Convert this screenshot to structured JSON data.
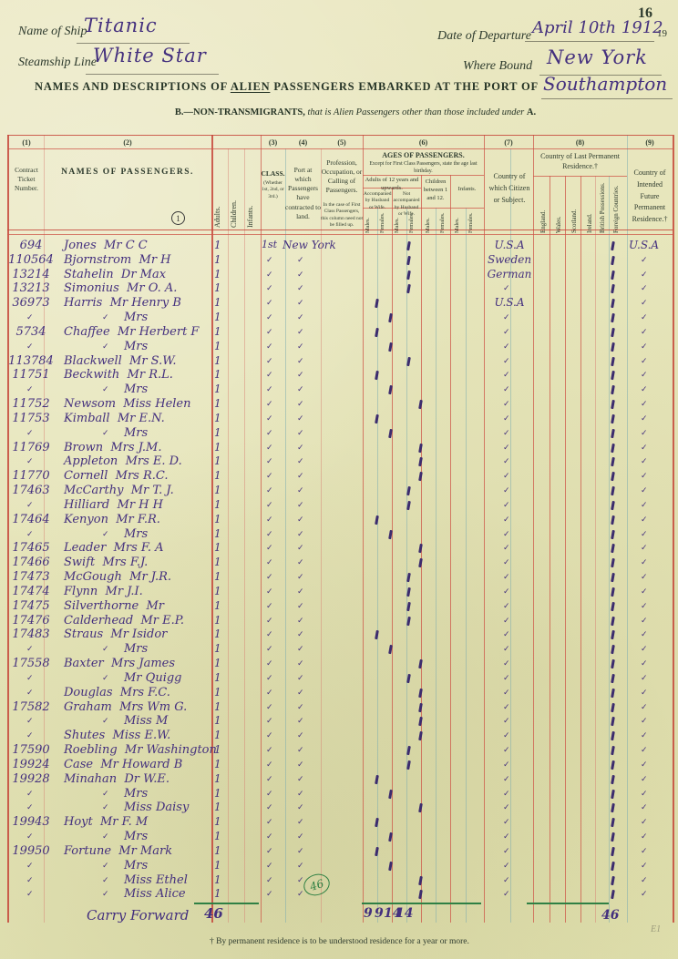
{
  "page": {
    "number": "16",
    "footnote": "† By permanent residence is to be understood residence for a year or more.",
    "pencil_mark": "E1"
  },
  "header": {
    "name_of_ship_label": "Name of Ship",
    "name_of_ship_value": "Titanic",
    "steamship_line_label": "Steamship Line",
    "steamship_line_value": "White Star",
    "date_of_departure_label": "Date of Departure",
    "date_of_departure_value": "April 10th 1912",
    "printed_year": "19",
    "where_bound_label": "Where Bound",
    "where_bound_value": "New York",
    "title_prefix": "NAMES AND DESCRIPTIONS OF",
    "title_alien": "ALIEN",
    "title_suffix": "PASSENGERS EMBARKED AT THE PORT OF",
    "port_of_embarkation": "Southampton",
    "section_b": "B.",
    "section_b_caps": "—NON-TRANSMIGRANTS,",
    "section_b_italic": "that is Alien Passengers other than those included under",
    "section_a": "A."
  },
  "table": {
    "columns": {
      "col1_num": "(1)",
      "col1_label": "Contract Ticket Number.",
      "col2_num": "(2)",
      "col2_label": "NAMES OF PASSENGERS.",
      "col2_stamp": "1",
      "count_cols": [
        "Adults.",
        "Children.",
        "Infants."
      ],
      "col3_num": "(3)",
      "col3_label": "CLASS.",
      "col3_sub": "(Whether 1st, 2nd, or 3rd.)",
      "col4_num": "(4)",
      "col4_label": "Port at which Passengers have contracted to land.",
      "col5_num": "(5)",
      "col5_label": "Profession, Occupation, or Calling of Passengers.",
      "col5_note": "In the case of First Class Passengers, this column need not be filled up.",
      "col6_num": "(6)",
      "col6_title": "AGES OF PASSENGERS.",
      "col6_note": "Except for First Class Passengers, state the age last birthday.",
      "adults_group": "Adults of 12 years and upwards.",
      "accompanied": "Accompanied by Husband or Wife.",
      "not_accompanied": "Not accompanied by Husband or Wife.",
      "children_group": "Children between 1 and 12.",
      "infants_group": "Infants.",
      "males": "Males.",
      "females": "Females.",
      "col7_num": "(7)",
      "col7_label": "Country of which Citizen or Subject.",
      "col8_num": "(8)",
      "col8_label": "Country of Last Permanent Residence.†",
      "col8_subs": [
        "England.",
        "Wales.",
        "Scotland.",
        "Ireland.",
        "British Possessions.",
        "Foreign Countries."
      ],
      "col9_num": "(9)",
      "col9_label": "Country of Intended Future Permanent Residence.†"
    },
    "rows": [
      {
        "ticket": "694",
        "name": "Jones  Mr C C",
        "indent": 0,
        "age": "mn",
        "cls": "1st",
        "port": "New York",
        "cit": "U.S.A",
        "fut": "U.S.A"
      },
      {
        "ticket": "110564",
        "name": "Bjornstrom  Mr H",
        "indent": 0,
        "age": "mn",
        "cls": "",
        "port": "",
        "cit": "Sweden",
        "fut": ""
      },
      {
        "ticket": "13214",
        "name": "Stahelin  Dr Max",
        "indent": 0,
        "age": "mn",
        "cls": "",
        "port": "",
        "cit": "German",
        "fut": ""
      },
      {
        "ticket": "13213",
        "name": "Simonius  Mr O. A.",
        "indent": 0,
        "age": "mn",
        "cls": "",
        "port": "",
        "cit": "",
        "fut": ""
      },
      {
        "ticket": "36973",
        "name": "Harris  Mr Henry B",
        "indent": 0,
        "age": "ma",
        "cls": "",
        "port": "",
        "cit": "U.S.A",
        "fut": ""
      },
      {
        "ticket": "",
        "name": "Mrs",
        "indent": 1,
        "age": "fa",
        "cls": "",
        "port": "",
        "cit": "",
        "fut": ""
      },
      {
        "ticket": "5734",
        "name": "Chaffee  Mr Herbert F",
        "indent": 0,
        "age": "ma",
        "cls": "",
        "port": "",
        "cit": "",
        "fut": ""
      },
      {
        "ticket": "",
        "name": "Mrs",
        "indent": 1,
        "age": "fa",
        "cls": "",
        "port": "",
        "cit": "",
        "fut": ""
      },
      {
        "ticket": "113784",
        "name": "Blackwell  Mr S.W.",
        "indent": 0,
        "age": "mn",
        "cls": "",
        "port": "",
        "cit": "",
        "fut": ""
      },
      {
        "ticket": "11751",
        "name": "Beckwith  Mr R.L.",
        "indent": 0,
        "age": "ma",
        "cls": "",
        "port": "",
        "cit": "",
        "fut": ""
      },
      {
        "ticket": "",
        "name": "Mrs",
        "indent": 1,
        "age": "fa",
        "cls": "",
        "port": "",
        "cit": "",
        "fut": ""
      },
      {
        "ticket": "11752",
        "name": "Newsom  Miss Helen",
        "indent": 0,
        "age": "fn",
        "cls": "",
        "port": "",
        "cit": "",
        "fut": ""
      },
      {
        "ticket": "11753",
        "name": "Kimball  Mr E.N.",
        "indent": 0,
        "age": "ma",
        "cls": "",
        "port": "",
        "cit": "",
        "fut": ""
      },
      {
        "ticket": "",
        "name": "Mrs",
        "indent": 1,
        "age": "fa",
        "cls": "",
        "port": "",
        "cit": "",
        "fut": ""
      },
      {
        "ticket": "11769",
        "name": "Brown  Mrs J.M.",
        "indent": 0,
        "age": "fn",
        "cls": "",
        "port": "",
        "cit": "",
        "fut": ""
      },
      {
        "ticket": "",
        "name": "Appleton  Mrs E. D.",
        "indent": 0,
        "age": "fn",
        "cls": "",
        "port": "",
        "cit": "",
        "fut": ""
      },
      {
        "ticket": "11770",
        "name": "Cornell  Mrs R.C.",
        "indent": 0,
        "age": "fn",
        "cls": "",
        "port": "",
        "cit": "",
        "fut": ""
      },
      {
        "ticket": "17463",
        "name": "McCarthy  Mr T. J.",
        "indent": 0,
        "age": "mn",
        "cls": "",
        "port": "",
        "cit": "",
        "fut": ""
      },
      {
        "ticket": "",
        "name": "Hilliard  Mr H H",
        "indent": 0,
        "age": "mn",
        "cls": "",
        "port": "",
        "cit": "",
        "fut": ""
      },
      {
        "ticket": "17464",
        "name": "Kenyon  Mr F.R.",
        "indent": 0,
        "age": "ma",
        "cls": "",
        "port": "",
        "cit": "",
        "fut": ""
      },
      {
        "ticket": "",
        "name": "Mrs",
        "indent": 1,
        "age": "fa",
        "cls": "",
        "port": "",
        "cit": "",
        "fut": ""
      },
      {
        "ticket": "17465",
        "name": "Leader  Mrs F. A",
        "indent": 0,
        "age": "fn",
        "cls": "",
        "port": "",
        "cit": "",
        "fut": ""
      },
      {
        "ticket": "17466",
        "name": "Swift  Mrs F.J.",
        "indent": 0,
        "age": "fn",
        "cls": "",
        "port": "",
        "cit": "",
        "fut": ""
      },
      {
        "ticket": "17473",
        "name": "McGough  Mr J.R.",
        "indent": 0,
        "age": "mn",
        "cls": "",
        "port": "",
        "cit": "",
        "fut": ""
      },
      {
        "ticket": "17474",
        "name": "Flynn  Mr J.I.",
        "indent": 0,
        "age": "mn",
        "cls": "",
        "port": "",
        "cit": "",
        "fut": ""
      },
      {
        "ticket": "17475",
        "name": "Silverthorne  Mr",
        "indent": 0,
        "age": "mn",
        "cls": "",
        "port": "",
        "cit": "",
        "fut": ""
      },
      {
        "ticket": "17476",
        "name": "Calderhead  Mr E.P.",
        "indent": 0,
        "age": "mn",
        "cls": "",
        "port": "",
        "cit": "",
        "fut": ""
      },
      {
        "ticket": "17483",
        "name": "Straus  Mr Isidor",
        "indent": 0,
        "age": "ma",
        "cls": "",
        "port": "",
        "cit": "",
        "fut": ""
      },
      {
        "ticket": "",
        "name": "Mrs",
        "indent": 1,
        "age": "fa",
        "cls": "",
        "port": "",
        "cit": "",
        "fut": ""
      },
      {
        "ticket": "17558",
        "name": "Baxter  Mrs James",
        "indent": 0,
        "age": "fn",
        "cls": "",
        "port": "",
        "cit": "",
        "fut": ""
      },
      {
        "ticket": "",
        "name": "Mr Quigg",
        "indent": 1,
        "age": "mn",
        "cls": "",
        "port": "",
        "cit": "",
        "fut": ""
      },
      {
        "ticket": "",
        "name": "Douglas  Mrs F.C.",
        "indent": 0,
        "age": "fn",
        "cls": "",
        "port": "",
        "cit": "",
        "fut": ""
      },
      {
        "ticket": "17582",
        "name": "Graham  Mrs Wm G.",
        "indent": 0,
        "age": "fn",
        "cls": "",
        "port": "",
        "cit": "",
        "fut": ""
      },
      {
        "ticket": "",
        "name": "Miss M",
        "indent": 1,
        "age": "fn",
        "cls": "",
        "port": "",
        "cit": "",
        "fut": ""
      },
      {
        "ticket": "",
        "name": "Shutes  Miss E.W.",
        "indent": 0,
        "age": "fn",
        "cls": "",
        "port": "",
        "cit": "",
        "fut": ""
      },
      {
        "ticket": "17590",
        "name": "Roebling  Mr Washington",
        "indent": 0,
        "age": "mn",
        "cls": "",
        "port": "",
        "cit": "",
        "fut": ""
      },
      {
        "ticket": "19924",
        "name": "Case  Mr Howard B",
        "indent": 0,
        "age": "mn",
        "cls": "",
        "port": "",
        "cit": "",
        "fut": ""
      },
      {
        "ticket": "19928",
        "name": "Minahan  Dr W.E.",
        "indent": 0,
        "age": "ma",
        "cls": "",
        "port": "",
        "cit": "",
        "fut": ""
      },
      {
        "ticket": "",
        "name": "Mrs",
        "indent": 1,
        "age": "fa",
        "cls": "",
        "port": "",
        "cit": "",
        "fut": ""
      },
      {
        "ticket": "",
        "name": "Miss Daisy",
        "indent": 1,
        "age": "fn",
        "cls": "",
        "port": "",
        "cit": "",
        "fut": ""
      },
      {
        "ticket": "19943",
        "name": "Hoyt  Mr F. M",
        "indent": 0,
        "age": "ma",
        "cls": "",
        "port": "",
        "cit": "",
        "fut": ""
      },
      {
        "ticket": "",
        "name": "Mrs",
        "indent": 1,
        "age": "fa",
        "cls": "",
        "port": "",
        "cit": "",
        "fut": ""
      },
      {
        "ticket": "19950",
        "name": "Fortune  Mr Mark",
        "indent": 0,
        "age": "ma",
        "cls": "",
        "port": "",
        "cit": "",
        "fut": ""
      },
      {
        "ticket": "",
        "name": "Mrs",
        "indent": 1,
        "age": "fa",
        "cls": "",
        "port": "",
        "cit": "",
        "fut": ""
      },
      {
        "ticket": "",
        "name": "Miss Ethel",
        "indent": 1,
        "age": "fn",
        "cls": "",
        "port": "",
        "cit": "",
        "fut": ""
      },
      {
        "ticket": "",
        "name": "Miss Alice",
        "indent": 1,
        "age": "fn",
        "cls": "",
        "port": "",
        "cit": "",
        "fut": ""
      }
    ],
    "footer": {
      "carry_forward": "Carry Forward",
      "adults_total": "46",
      "age_totals": [
        "9",
        "9",
        "14",
        "14"
      ],
      "residence_total": "46",
      "stamp_46": "46"
    }
  }
}
